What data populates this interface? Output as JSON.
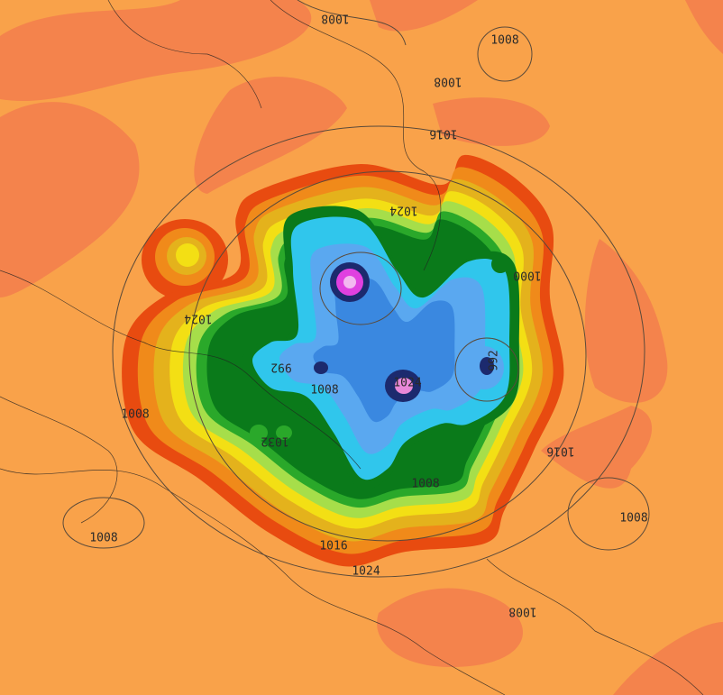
{
  "isobar_labels": [
    "1008",
    "1008",
    "1008",
    "1016",
    "1024",
    "1024",
    "1008",
    "1032",
    "992",
    "1008",
    "1024",
    "992",
    "1000",
    "1016",
    "1008",
    "1008",
    "1016",
    "1024",
    "1008",
    "1008"
  ]
}
